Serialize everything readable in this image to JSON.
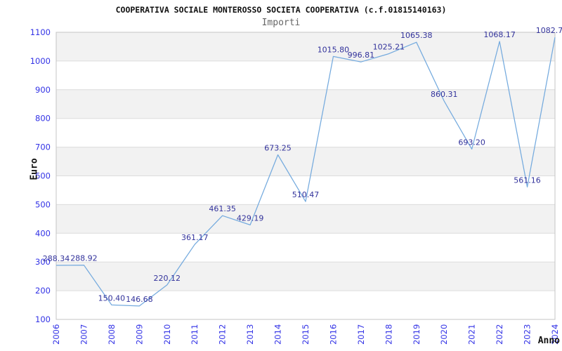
{
  "header": {
    "title": "COOPERATIVA SOCIALE MONTEROSSO SOCIETA COOPERATIVA (c.f.01815140163)",
    "subtitle": "Importi"
  },
  "chart_data": {
    "type": "line",
    "title": "COOPERATIVA SOCIALE MONTEROSSO SOCIETA COOPERATIVA (c.f.01815140163)",
    "subtitle": "Importi",
    "xlabel": "Anno",
    "ylabel": "Euro",
    "categories": [
      "2006",
      "2007",
      "2008",
      "2009",
      "2010",
      "2011",
      "2012",
      "2013",
      "2014",
      "2015",
      "2016",
      "2017",
      "2018",
      "2019",
      "2020",
      "2021",
      "2022",
      "2023",
      "2024"
    ],
    "values": [
      288.34,
      288.92,
      150.4,
      146.68,
      220.12,
      361.17,
      461.35,
      429.19,
      673.25,
      510.47,
      1015.8,
      996.81,
      1025.21,
      1065.38,
      860.31,
      693.2,
      1068.17,
      561.16,
      1082.7
    ],
    "point_labels": [
      "288.34",
      "288.92",
      "150.40",
      "146.68",
      "220.12",
      "361.17",
      "461.35",
      "429.19",
      "673.25",
      "510.47",
      "1015.80",
      "996.81",
      "1025.21",
      "1065.38",
      "860.31",
      "693.20",
      "1068.17",
      "561.16",
      "1082.7"
    ],
    "ylim": [
      100,
      1100
    ],
    "ytick_step": 100,
    "grid": true,
    "legend": false,
    "band_shading": "alternating horizontal bands shaded on 200-300, 400-500, 600-700, 800-900, 1000-1100",
    "colors": {
      "line": "#74aade",
      "tick_label": "#3232e6",
      "data_label": "#32329b",
      "band": "#f2f2f2",
      "gridline": "#dcdcdc",
      "border": "#c4c4c4",
      "title": "#111111",
      "subtitle": "#666666"
    }
  }
}
